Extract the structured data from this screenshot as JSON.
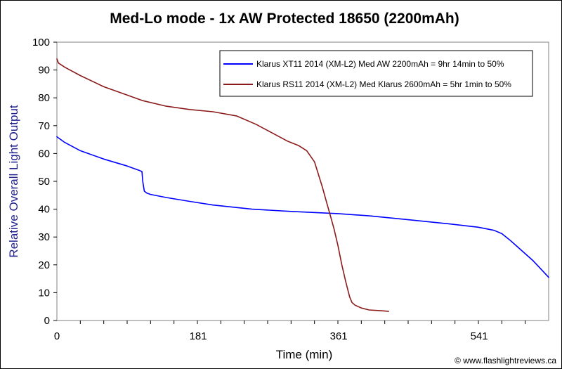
{
  "chart_data": {
    "type": "line",
    "title": "Med-Lo mode - 1x AW Protected 18650 (2200mAh)",
    "xlabel": "Time (min)",
    "ylabel": "Relative Overall Light Output",
    "xlim": [
      0,
      630
    ],
    "ylim": [
      0,
      100
    ],
    "x_tick_labels": [
      "0",
      "181",
      "361",
      "541"
    ],
    "x_tick_values": [
      0,
      181,
      361,
      541
    ],
    "y_tick_labels": [
      "0",
      "10",
      "20",
      "30",
      "40",
      "50",
      "60",
      "70",
      "80",
      "90",
      "100"
    ],
    "y_tick_values": [
      0,
      10,
      20,
      30,
      40,
      50,
      60,
      70,
      80,
      90,
      100
    ],
    "grid": false,
    "legend_position": "top-right",
    "credit": "© www.flashlightreviews.ca",
    "series": [
      {
        "name": "Klarus XT11 2014 (XM-L2) Med AW 2200mAh = 9hr 14min to 50%",
        "color": "#0000ff",
        "x": [
          0,
          10,
          30,
          60,
          90,
          105,
          109,
          110,
          112,
          115,
          120,
          140,
          170,
          200,
          250,
          300,
          360,
          400,
          450,
          500,
          540,
          560,
          570,
          580,
          590,
          600,
          610,
          620,
          630
        ],
        "y": [
          66,
          64,
          61,
          58,
          55.5,
          54,
          53.5,
          50,
          46.5,
          45.8,
          45.3,
          44.2,
          42.8,
          41.5,
          40,
          39.2,
          38.4,
          37.6,
          36.2,
          34.8,
          33.5,
          32.4,
          31.2,
          29,
          26.5,
          24,
          21.5,
          18.5,
          15.5
        ]
      },
      {
        "name": "Klarus RS11 2014 (XM-L2) Med Klarus 2600mAh = 5hr 1min to 50%",
        "color": "#8b1a1a",
        "x": [
          0,
          2,
          10,
          30,
          60,
          90,
          110,
          140,
          170,
          200,
          230,
          255,
          275,
          295,
          310,
          320,
          330,
          340,
          345,
          350,
          355,
          360,
          365,
          370,
          375,
          378,
          382,
          390,
          400,
          415,
          425
        ],
        "y": [
          94,
          92.5,
          91,
          88,
          84,
          81,
          79,
          77,
          75.8,
          75,
          73.5,
          70.5,
          67.5,
          64.5,
          62.8,
          61,
          57,
          48,
          43,
          38,
          33,
          27,
          20,
          14,
          8.5,
          6.5,
          5.5,
          4.5,
          3.8,
          3.5,
          3.3
        ]
      }
    ]
  }
}
